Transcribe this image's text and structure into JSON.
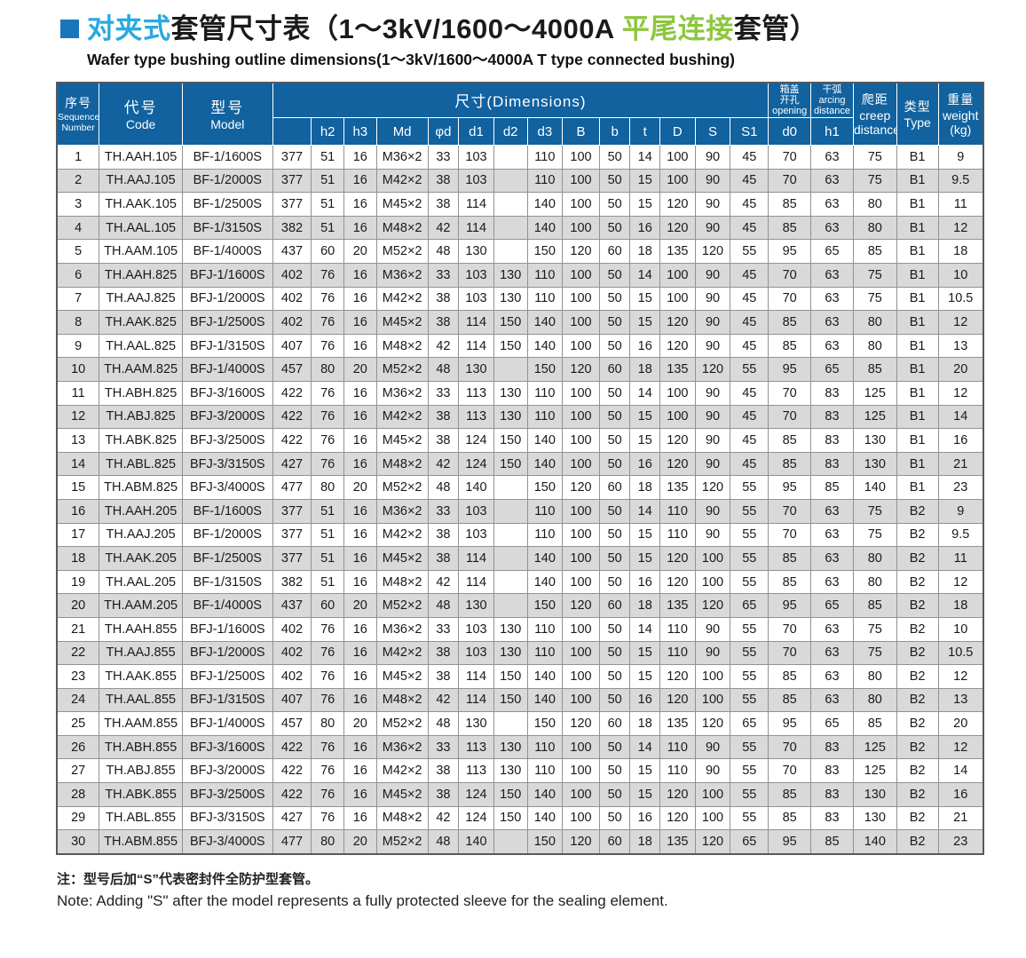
{
  "title": {
    "zh_blue": "对夹式",
    "zh_mid": "套管尺寸表（1～3kV/1600～4000A ",
    "zh_green": "平尾连接",
    "zh_end": "套管）",
    "subtitle": "Wafer type bushing outline dimensions(1～3kV/1600～4000A T type connected bushing)"
  },
  "table": {
    "header": {
      "seq_zh": "序号",
      "seq_en": [
        "Sequence",
        "Number"
      ],
      "code_zh": "代号",
      "code_en": "Code",
      "model_zh": "型号",
      "model_en": "Model",
      "dims_label": "尺寸(Dimensions)",
      "dim_sublabels": [
        "",
        "h2",
        "h3",
        "Md",
        "φd",
        "d1",
        "d2",
        "d3",
        "B",
        "b",
        "t",
        "D",
        "S",
        "S1"
      ],
      "opening": [
        "箱盖",
        "开孔",
        "opening"
      ],
      "opening_sub": "d0",
      "arcing": [
        "干弧",
        "arcing",
        "distance"
      ],
      "arcing_sub": "h1",
      "creep": [
        "爬距",
        "creep",
        "distance"
      ],
      "type_zh": "类型",
      "type_en": "Type",
      "weight_zh": "重量",
      "weight_en": "weight",
      "weight_unit": "(kg)"
    },
    "col_keys": [
      "seq",
      "code",
      "model",
      "h",
      "h2",
      "h3",
      "md",
      "phi-d",
      "d1",
      "d2",
      "d3",
      "B",
      "b",
      "t",
      "D",
      "S",
      "S1",
      "d0",
      "h1",
      "creep",
      "type",
      "weight"
    ],
    "rows": [
      [
        "1",
        "TH.AAH.105",
        "BF-1/1600S",
        "377",
        "51",
        "16",
        "M36×2",
        "33",
        "103",
        "",
        "110",
        "100",
        "50",
        "14",
        "100",
        "90",
        "45",
        "70",
        "63",
        "75",
        "B1",
        "9"
      ],
      [
        "2",
        "TH.AAJ.105",
        "BF-1/2000S",
        "377",
        "51",
        "16",
        "M42×2",
        "38",
        "103",
        "",
        "110",
        "100",
        "50",
        "15",
        "100",
        "90",
        "45",
        "70",
        "63",
        "75",
        "B1",
        "9.5"
      ],
      [
        "3",
        "TH.AAK.105",
        "BF-1/2500S",
        "377",
        "51",
        "16",
        "M45×2",
        "38",
        "114",
        "",
        "140",
        "100",
        "50",
        "15",
        "120",
        "90",
        "45",
        "85",
        "63",
        "80",
        "B1",
        "11"
      ],
      [
        "4",
        "TH.AAL.105",
        "BF-1/3150S",
        "382",
        "51",
        "16",
        "M48×2",
        "42",
        "114",
        "",
        "140",
        "100",
        "50",
        "16",
        "120",
        "90",
        "45",
        "85",
        "63",
        "80",
        "B1",
        "12"
      ],
      [
        "5",
        "TH.AAM.105",
        "BF-1/4000S",
        "437",
        "60",
        "20",
        "M52×2",
        "48",
        "130",
        "",
        "150",
        "120",
        "60",
        "18",
        "135",
        "120",
        "55",
        "95",
        "65",
        "85",
        "B1",
        "18"
      ],
      [
        "6",
        "TH.AAH.825",
        "BFJ-1/1600S",
        "402",
        "76",
        "16",
        "M36×2",
        "33",
        "103",
        "130",
        "110",
        "100",
        "50",
        "14",
        "100",
        "90",
        "45",
        "70",
        "63",
        "75",
        "B1",
        "10"
      ],
      [
        "7",
        "TH.AAJ.825",
        "BFJ-1/2000S",
        "402",
        "76",
        "16",
        "M42×2",
        "38",
        "103",
        "130",
        "110",
        "100",
        "50",
        "15",
        "100",
        "90",
        "45",
        "70",
        "63",
        "75",
        "B1",
        "10.5"
      ],
      [
        "8",
        "TH.AAK.825",
        "BFJ-1/2500S",
        "402",
        "76",
        "16",
        "M45×2",
        "38",
        "114",
        "150",
        "140",
        "100",
        "50",
        "15",
        "120",
        "90",
        "45",
        "85",
        "63",
        "80",
        "B1",
        "12"
      ],
      [
        "9",
        "TH.AAL.825",
        "BFJ-1/3150S",
        "407",
        "76",
        "16",
        "M48×2",
        "42",
        "114",
        "150",
        "140",
        "100",
        "50",
        "16",
        "120",
        "90",
        "45",
        "85",
        "63",
        "80",
        "B1",
        "13"
      ],
      [
        "10",
        "TH.AAM.825",
        "BFJ-1/4000S",
        "457",
        "80",
        "20",
        "M52×2",
        "48",
        "130",
        "",
        "150",
        "120",
        "60",
        "18",
        "135",
        "120",
        "55",
        "95",
        "65",
        "85",
        "B1",
        "20"
      ],
      [
        "11",
        "TH.ABH.825",
        "BFJ-3/1600S",
        "422",
        "76",
        "16",
        "M36×2",
        "33",
        "113",
        "130",
        "110",
        "100",
        "50",
        "14",
        "100",
        "90",
        "45",
        "70",
        "83",
        "125",
        "B1",
        "12"
      ],
      [
        "12",
        "TH.ABJ.825",
        "BFJ-3/2000S",
        "422",
        "76",
        "16",
        "M42×2",
        "38",
        "113",
        "130",
        "110",
        "100",
        "50",
        "15",
        "100",
        "90",
        "45",
        "70",
        "83",
        "125",
        "B1",
        "14"
      ],
      [
        "13",
        "TH.ABK.825",
        "BFJ-3/2500S",
        "422",
        "76",
        "16",
        "M45×2",
        "38",
        "124",
        "150",
        "140",
        "100",
        "50",
        "15",
        "120",
        "90",
        "45",
        "85",
        "83",
        "130",
        "B1",
        "16"
      ],
      [
        "14",
        "TH.ABL.825",
        "BFJ-3/3150S",
        "427",
        "76",
        "16",
        "M48×2",
        "42",
        "124",
        "150",
        "140",
        "100",
        "50",
        "16",
        "120",
        "90",
        "45",
        "85",
        "83",
        "130",
        "B1",
        "21"
      ],
      [
        "15",
        "TH.ABM.825",
        "BFJ-3/4000S",
        "477",
        "80",
        "20",
        "M52×2",
        "48",
        "140",
        "",
        "150",
        "120",
        "60",
        "18",
        "135",
        "120",
        "55",
        "95",
        "85",
        "140",
        "B1",
        "23"
      ],
      [
        "16",
        "TH.AAH.205",
        "BF-1/1600S",
        "377",
        "51",
        "16",
        "M36×2",
        "33",
        "103",
        "",
        "110",
        "100",
        "50",
        "14",
        "110",
        "90",
        "55",
        "70",
        "63",
        "75",
        "B2",
        "9"
      ],
      [
        "17",
        "TH.AAJ.205",
        "BF-1/2000S",
        "377",
        "51",
        "16",
        "M42×2",
        "38",
        "103",
        "",
        "110",
        "100",
        "50",
        "15",
        "110",
        "90",
        "55",
        "70",
        "63",
        "75",
        "B2",
        "9.5"
      ],
      [
        "18",
        "TH.AAK.205",
        "BF-1/2500S",
        "377",
        "51",
        "16",
        "M45×2",
        "38",
        "114",
        "",
        "140",
        "100",
        "50",
        "15",
        "120",
        "100",
        "55",
        "85",
        "63",
        "80",
        "B2",
        "11"
      ],
      [
        "19",
        "TH.AAL.205",
        "BF-1/3150S",
        "382",
        "51",
        "16",
        "M48×2",
        "42",
        "114",
        "",
        "140",
        "100",
        "50",
        "16",
        "120",
        "100",
        "55",
        "85",
        "63",
        "80",
        "B2",
        "12"
      ],
      [
        "20",
        "TH.AAM.205",
        "BF-1/4000S",
        "437",
        "60",
        "20",
        "M52×2",
        "48",
        "130",
        "",
        "150",
        "120",
        "60",
        "18",
        "135",
        "120",
        "65",
        "95",
        "65",
        "85",
        "B2",
        "18"
      ],
      [
        "21",
        "TH.AAH.855",
        "BFJ-1/1600S",
        "402",
        "76",
        "16",
        "M36×2",
        "33",
        "103",
        "130",
        "110",
        "100",
        "50",
        "14",
        "110",
        "90",
        "55",
        "70",
        "63",
        "75",
        "B2",
        "10"
      ],
      [
        "22",
        "TH.AAJ.855",
        "BFJ-1/2000S",
        "402",
        "76",
        "16",
        "M42×2",
        "38",
        "103",
        "130",
        "110",
        "100",
        "50",
        "15",
        "110",
        "90",
        "55",
        "70",
        "63",
        "75",
        "B2",
        "10.5"
      ],
      [
        "23",
        "TH.AAK.855",
        "BFJ-1/2500S",
        "402",
        "76",
        "16",
        "M45×2",
        "38",
        "114",
        "150",
        "140",
        "100",
        "50",
        "15",
        "120",
        "100",
        "55",
        "85",
        "63",
        "80",
        "B2",
        "12"
      ],
      [
        "24",
        "TH.AAL.855",
        "BFJ-1/3150S",
        "407",
        "76",
        "16",
        "M48×2",
        "42",
        "114",
        "150",
        "140",
        "100",
        "50",
        "16",
        "120",
        "100",
        "55",
        "85",
        "63",
        "80",
        "B2",
        "13"
      ],
      [
        "25",
        "TH.AAM.855",
        "BFJ-1/4000S",
        "457",
        "80",
        "20",
        "M52×2",
        "48",
        "130",
        "",
        "150",
        "120",
        "60",
        "18",
        "135",
        "120",
        "65",
        "95",
        "65",
        "85",
        "B2",
        "20"
      ],
      [
        "26",
        "TH.ABH.855",
        "BFJ-3/1600S",
        "422",
        "76",
        "16",
        "M36×2",
        "33",
        "113",
        "130",
        "110",
        "100",
        "50",
        "14",
        "110",
        "90",
        "55",
        "70",
        "83",
        "125",
        "B2",
        "12"
      ],
      [
        "27",
        "TH.ABJ.855",
        "BFJ-3/2000S",
        "422",
        "76",
        "16",
        "M42×2",
        "38",
        "113",
        "130",
        "110",
        "100",
        "50",
        "15",
        "110",
        "90",
        "55",
        "70",
        "83",
        "125",
        "B2",
        "14"
      ],
      [
        "28",
        "TH.ABK.855",
        "BFJ-3/2500S",
        "422",
        "76",
        "16",
        "M45×2",
        "38",
        "124",
        "150",
        "140",
        "100",
        "50",
        "15",
        "120",
        "100",
        "55",
        "85",
        "83",
        "130",
        "B2",
        "16"
      ],
      [
        "29",
        "TH.ABL.855",
        "BFJ-3/3150S",
        "427",
        "76",
        "16",
        "M48×2",
        "42",
        "124",
        "150",
        "140",
        "100",
        "50",
        "16",
        "120",
        "100",
        "55",
        "85",
        "83",
        "130",
        "B2",
        "21"
      ],
      [
        "30",
        "TH.ABM.855",
        "BFJ-3/4000S",
        "477",
        "80",
        "20",
        "M52×2",
        "48",
        "140",
        "",
        "150",
        "120",
        "60",
        "18",
        "135",
        "120",
        "65",
        "95",
        "85",
        "140",
        "B2",
        "23"
      ]
    ]
  },
  "notes": {
    "zh": "注：型号后加“S”代表密封件全防护型套管。",
    "en": "Note: Adding \"S\" after the model represents a fully protected sleeve for the sealing element."
  },
  "colors": {
    "header_bg": "#11629f",
    "title_accent_blue": "#29a9e0",
    "title_accent_green": "#8dc63f",
    "bullet_blue": "#1b75bb",
    "row_alt_gray": "#d9d9d9"
  }
}
